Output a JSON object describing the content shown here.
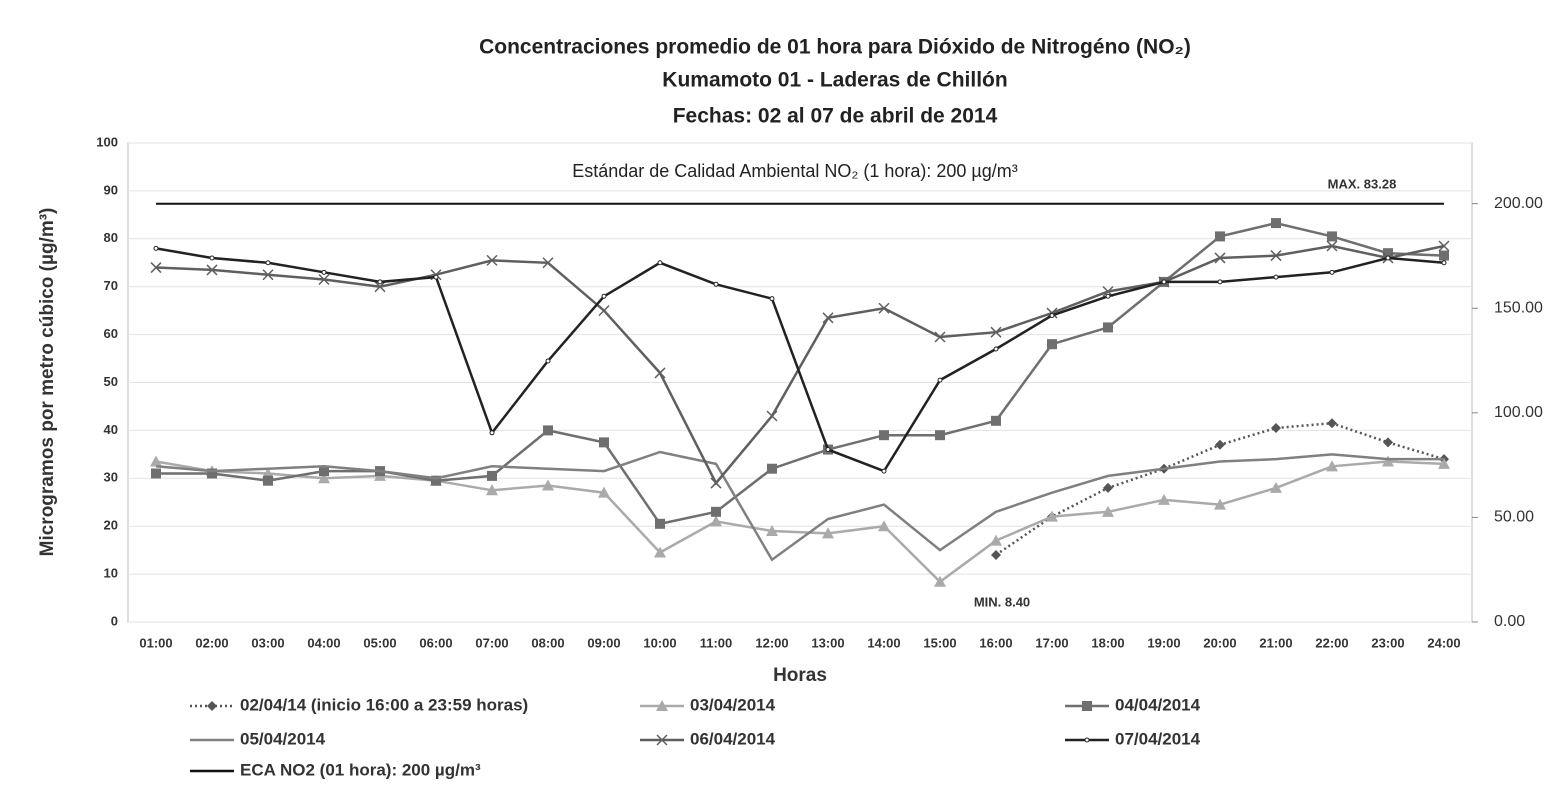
{
  "chart_data": {
    "type": "line",
    "title": "Concentraciones promedio de 01 hora para Dióxido de Nitrogéno (NO₂)",
    "subtitle": [
      "Kumamoto 01 -  Laderas de Chillón",
      "Fechas: 02 al 07 de abril de 2014"
    ],
    "xlabel": "Horas",
    "ylabel": "Microgramos por metro cúbico (µg/m³)",
    "annotations": [
      "Estándar de Calidad Ambiental  NO₂ (1 hora): 200 µg/m³",
      "MAX. 83.28",
      "MIN. 8.40"
    ],
    "categories": [
      "01:00",
      "02:00",
      "03:00",
      "04:00",
      "05:00",
      "06:00",
      "07:00",
      "08:00",
      "09:00",
      "10:00",
      "11:00",
      "12:00",
      "13:00",
      "14:00",
      "15:00",
      "16:00",
      "17:00",
      "18:00",
      "19:00",
      "20:00",
      "21:00",
      "22:00",
      "23:00",
      "24:00"
    ],
    "ylim": [
      0,
      100
    ],
    "yticks": [
      0,
      10,
      20,
      30,
      40,
      50,
      60,
      70,
      80,
      90,
      100
    ],
    "y2lim": [
      0,
      229
    ],
    "y2ticks": [
      {
        "value": 0,
        "label": "0.00"
      },
      {
        "value": 50,
        "label": "50.00"
      },
      {
        "value": 100,
        "label": "100.00"
      },
      {
        "value": 150,
        "label": "150.00"
      },
      {
        "value": 200,
        "label": "200.00"
      }
    ],
    "grid": true,
    "series": [
      {
        "name": "02/04/14 (inicio 16:00 a 23:59 horas)",
        "color": "#555555",
        "dash": "dotted",
        "marker": "diamond",
        "values": [
          null,
          null,
          null,
          null,
          null,
          null,
          null,
          null,
          null,
          null,
          null,
          null,
          null,
          null,
          null,
          14,
          22,
          28,
          32,
          37,
          40.5,
          41.5,
          37.5,
          34
        ]
      },
      {
        "name": "03/04/2014",
        "color": "#aaaaaa",
        "marker": "triangle",
        "values": [
          33.5,
          31.5,
          31,
          30,
          30.5,
          29.5,
          27.5,
          28.5,
          27,
          14.5,
          21,
          19,
          18.5,
          20,
          8.4,
          17,
          22,
          23,
          25.5,
          24.5,
          28,
          32.5,
          33.5,
          33
        ]
      },
      {
        "name": "04/04/2014",
        "color": "#6f6f6f",
        "marker": "square",
        "values": [
          31,
          31,
          29.5,
          31.5,
          31.5,
          29.5,
          30.5,
          40,
          37.5,
          20.5,
          23,
          32,
          36,
          39,
          39,
          42,
          58,
          61.5,
          71,
          80.5,
          83.28,
          80.5,
          77,
          76.5
        ]
      },
      {
        "name": "05/04/2014",
        "color": "#808080",
        "marker": "none",
        "values": [
          32.5,
          31.5,
          32,
          32.5,
          31.5,
          30,
          32.5,
          32,
          31.5,
          35.5,
          33,
          13,
          21.5,
          24.5,
          15,
          23,
          27,
          30.5,
          32,
          33.5,
          34,
          35,
          34,
          34
        ]
      },
      {
        "name": "06/04/2014",
        "color": "#5f5f5f",
        "marker": "x",
        "values": [
          74,
          73.5,
          72.5,
          71.5,
          70,
          72.5,
          75.5,
          75,
          65,
          52,
          29,
          43,
          63.5,
          65.5,
          59.5,
          60.5,
          64.5,
          69,
          71,
          76,
          76.5,
          78.5,
          76,
          78.5
        ]
      },
      {
        "name": "07/04/2014",
        "color": "#222222",
        "marker": "dot",
        "values": [
          78,
          76,
          75,
          73,
          71,
          72,
          39.5,
          54.5,
          68,
          75,
          70.5,
          67.5,
          36,
          31.5,
          50.5,
          57,
          64,
          68,
          71,
          71,
          72,
          73,
          76,
          75
        ]
      },
      {
        "name": "ECA NO2 (01 hora):  200 µg/m³",
        "color": "#111111",
        "marker": "none",
        "axis": "y2",
        "values": [
          200,
          200,
          200,
          200,
          200,
          200,
          200,
          200,
          200,
          200,
          200,
          200,
          200,
          200,
          200,
          200,
          200,
          200,
          200,
          200,
          200,
          200,
          200,
          200
        ]
      }
    ]
  }
}
